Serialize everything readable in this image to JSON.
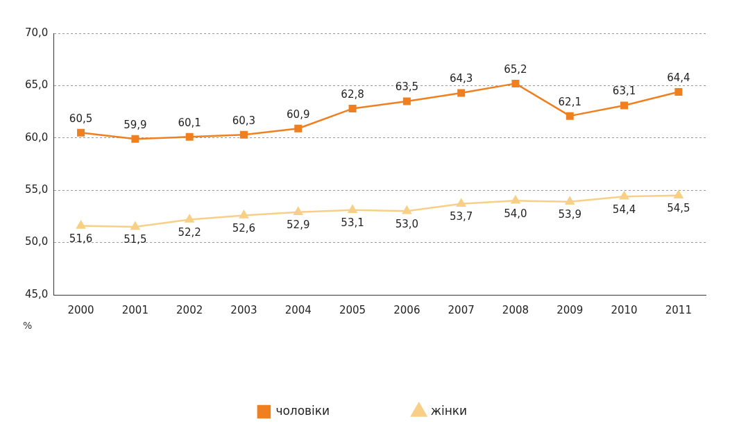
{
  "chart_data": {
    "type": "line",
    "ylabel": "%",
    "categories": [
      "2000",
      "2001",
      "2002",
      "2003",
      "2004",
      "2005",
      "2006",
      "2007",
      "2008",
      "2009",
      "2010",
      "2011"
    ],
    "series": [
      {
        "name": "чоловіки",
        "color": "#f07f1f",
        "marker": "square",
        "values": [
          60.5,
          59.9,
          60.1,
          60.3,
          60.9,
          62.8,
          63.5,
          64.3,
          65.2,
          62.1,
          63.1,
          64.4
        ],
        "value_labels": [
          "60,5",
          "59,9",
          "60,1",
          "60,3",
          "60,9",
          "62,8",
          "63,5",
          "64,3",
          "65,2",
          "62,1",
          "63,1",
          "64,4"
        ]
      },
      {
        "name": "жінки",
        "color": "#f8cf86",
        "marker": "triangle",
        "values": [
          51.6,
          51.5,
          52.2,
          52.6,
          52.9,
          53.1,
          53.0,
          53.7,
          54.0,
          53.9,
          54.4,
          54.5
        ],
        "value_labels": [
          "51,6",
          "51,5",
          "52,2",
          "52,6",
          "52,9",
          "53,1",
          "53,0",
          "53,7",
          "54,0",
          "53,9",
          "54,4",
          "54,5"
        ]
      }
    ],
    "ylim": [
      45,
      70
    ],
    "yticks": [
      {
        "value": 45,
        "label": "45,0"
      },
      {
        "value": 50,
        "label": "50,0"
      },
      {
        "value": 55,
        "label": "55,0"
      },
      {
        "value": 60,
        "label": "60,0"
      },
      {
        "value": 65,
        "label": "65,0"
      },
      {
        "value": 70,
        "label": "70,0"
      }
    ],
    "grid": "y",
    "legend": "bottom",
    "line_style": "solid"
  }
}
